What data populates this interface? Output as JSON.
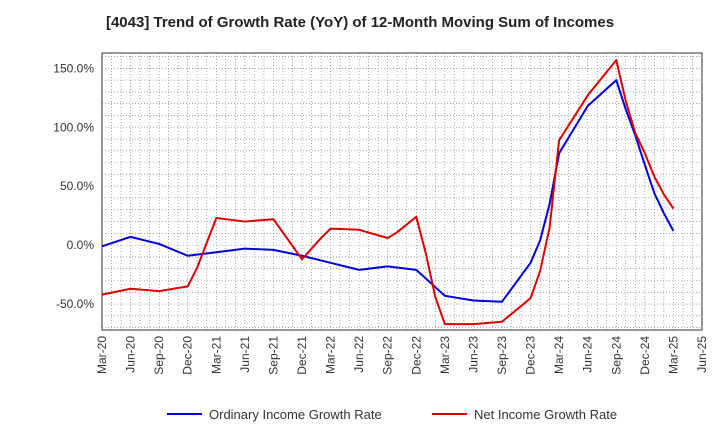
{
  "title": "[4043]  Trend of Growth Rate (YoY) of 12-Month Moving Sum of Incomes",
  "chart_data": {
    "type": "line",
    "title": "[4043]  Trend of Growth Rate (YoY) of 12-Month Moving Sum of Incomes",
    "xlabel": "",
    "ylabel": "",
    "x_tick_labels": [
      "Mar-20",
      "Jun-20",
      "Sep-20",
      "Dec-20",
      "Mar-21",
      "Jun-21",
      "Sep-21",
      "Dec-21",
      "Mar-22",
      "Jun-22",
      "Sep-22",
      "Dec-22",
      "Mar-23",
      "Jun-23",
      "Sep-23",
      "Dec-23",
      "Mar-24",
      "Jun-24",
      "Sep-24",
      "Dec-24",
      "Mar-25",
      "Jun-25"
    ],
    "y_tick_labels": [
      "-50.0%",
      "0.0%",
      "50.0%",
      "100.0%",
      "150.0%"
    ],
    "y_ticks": [
      -50,
      0,
      50,
      100,
      150
    ],
    "ylim": [
      -72,
      163
    ],
    "x_range_months": [
      0,
      63
    ],
    "x_unit": "months from Mar-20",
    "grid": true,
    "legend_position": "bottom",
    "series": [
      {
        "name": "Ordinary Income Growth Rate",
        "color": "#0000dd",
        "points": [
          [
            0,
            -1
          ],
          [
            3,
            7
          ],
          [
            6,
            1
          ],
          [
            9,
            -9
          ],
          [
            12,
            -6
          ],
          [
            15,
            -3
          ],
          [
            18,
            -4
          ],
          [
            21,
            -9
          ],
          [
            24,
            -15
          ],
          [
            27,
            -21
          ],
          [
            30,
            -18
          ],
          [
            33,
            -21
          ],
          [
            36,
            -43
          ],
          [
            39,
            -47
          ],
          [
            42,
            -48
          ],
          [
            45,
            -15
          ],
          [
            46,
            4
          ],
          [
            47,
            35
          ],
          [
            48,
            78
          ],
          [
            51,
            118
          ],
          [
            54,
            140
          ],
          [
            55,
            115
          ],
          [
            56,
            93
          ],
          [
            57,
            68
          ],
          [
            58,
            44
          ],
          [
            59,
            27
          ],
          [
            60,
            12
          ]
        ]
      },
      {
        "name": "Net Income Growth Rate",
        "color": "#dd0000",
        "points": [
          [
            0,
            -42
          ],
          [
            3,
            -37
          ],
          [
            6,
            -39
          ],
          [
            9,
            -35
          ],
          [
            10,
            -19
          ],
          [
            11,
            2
          ],
          [
            12,
            23
          ],
          [
            15,
            20
          ],
          [
            18,
            22
          ],
          [
            21,
            -12
          ],
          [
            22,
            -3
          ],
          [
            23,
            6
          ],
          [
            24,
            14
          ],
          [
            27,
            13
          ],
          [
            30,
            6
          ],
          [
            31,
            11
          ],
          [
            33,
            24
          ],
          [
            34,
            -7
          ],
          [
            35,
            -44
          ],
          [
            36,
            -67
          ],
          [
            39,
            -67
          ],
          [
            42,
            -65
          ],
          [
            45,
            -45
          ],
          [
            46,
            -22
          ],
          [
            47,
            15
          ],
          [
            48,
            89
          ],
          [
            51,
            127
          ],
          [
            54,
            157
          ],
          [
            55,
            122
          ],
          [
            56,
            95
          ],
          [
            57,
            78
          ],
          [
            58,
            58
          ],
          [
            59,
            43
          ],
          [
            60,
            31
          ]
        ]
      }
    ]
  }
}
